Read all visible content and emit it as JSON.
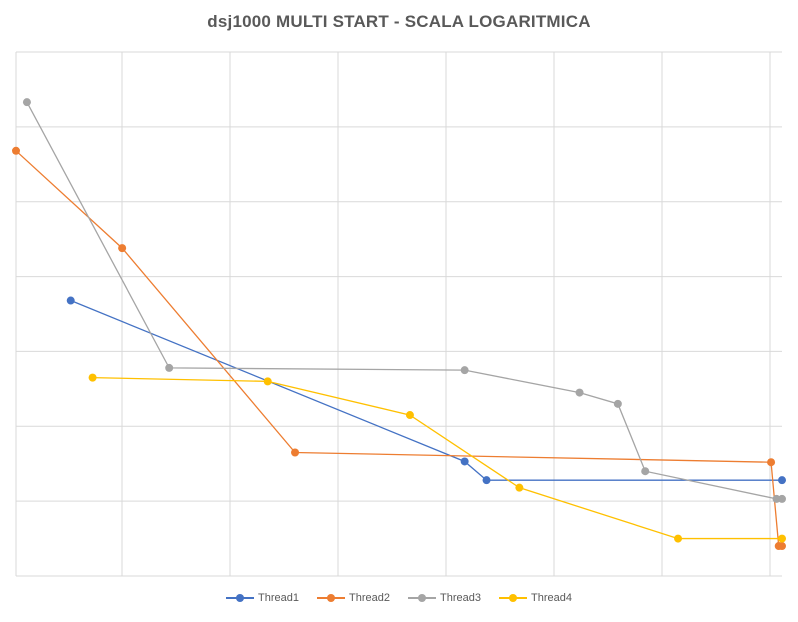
{
  "chart_data": {
    "type": "line",
    "title": "dsj1000 MULTI START - SCALA LOGARITMICA",
    "xlabel": "",
    "ylabel": "",
    "xlim": [
      0,
      7
    ],
    "ylim": [
      0,
      7
    ],
    "grid": true,
    "legend_position": "bottom",
    "series": [
      {
        "name": "Thread1",
        "color": "#4472C4",
        "points": [
          [
            0.5,
            3.68
          ],
          [
            4.1,
            1.53
          ],
          [
            4.3,
            1.28
          ],
          [
            7.0,
            1.28
          ]
        ]
      },
      {
        "name": "Thread2",
        "color": "#ED7D31",
        "points": [
          [
            0.0,
            5.68
          ],
          [
            0.97,
            4.38
          ],
          [
            2.55,
            1.65
          ],
          [
            6.9,
            1.52
          ],
          [
            6.97,
            0.4
          ],
          [
            7.0,
            0.4
          ]
        ]
      },
      {
        "name": "Thread3",
        "color": "#A5A5A5",
        "points": [
          [
            0.1,
            6.33
          ],
          [
            1.4,
            2.78
          ],
          [
            4.1,
            2.75
          ],
          [
            5.15,
            2.45
          ],
          [
            5.5,
            2.3
          ],
          [
            5.75,
            1.4
          ],
          [
            6.95,
            1.03
          ],
          [
            7.0,
            1.03
          ]
        ]
      },
      {
        "name": "Thread4",
        "color": "#FFC000",
        "points": [
          [
            0.7,
            2.65
          ],
          [
            2.3,
            2.6
          ],
          [
            3.6,
            2.15
          ],
          [
            4.6,
            1.18
          ],
          [
            6.05,
            0.5
          ],
          [
            7.0,
            0.5
          ]
        ]
      }
    ]
  }
}
